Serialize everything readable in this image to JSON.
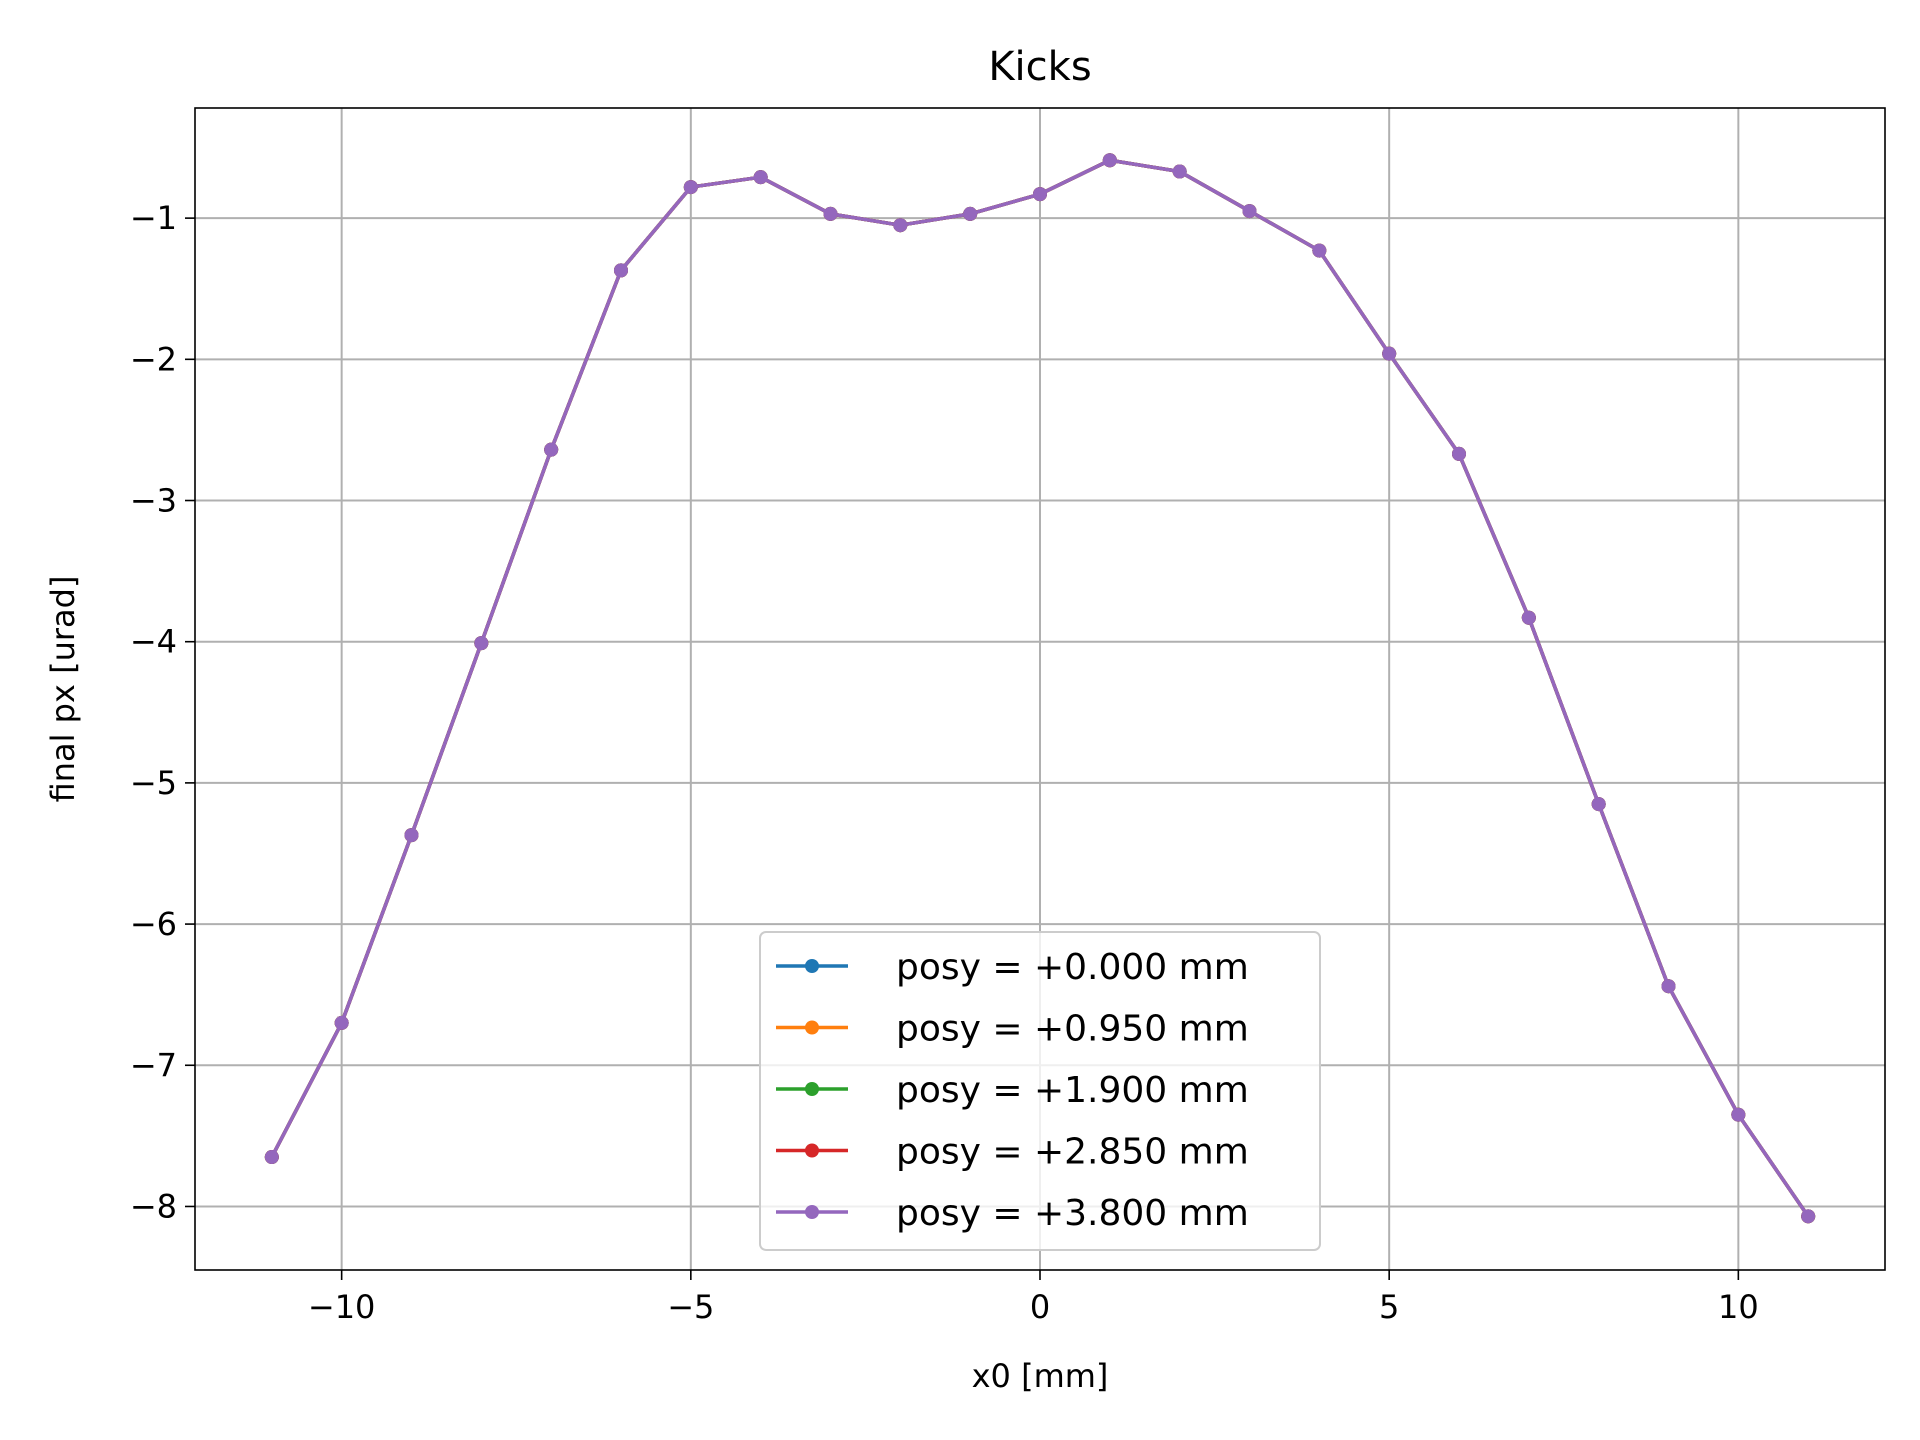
{
  "chart_data": {
    "type": "line",
    "title": "Kicks",
    "xlabel": "x0 [mm]",
    "ylabel": "final px [urad]",
    "xlim": [
      -12.1,
      12.1
    ],
    "ylim": [
      -8.45,
      -0.22
    ],
    "xticks": [
      -10,
      -5,
      0,
      5,
      10
    ],
    "xtick_labels": [
      "−10",
      "−5",
      "0",
      "5",
      "10"
    ],
    "yticks": [
      -1,
      -2,
      -3,
      -4,
      -5,
      -6,
      -7,
      -8
    ],
    "ytick_labels": [
      "−1",
      "−2",
      "−3",
      "−4",
      "−5",
      "−6",
      "−7",
      "−8"
    ],
    "grid": true,
    "legend_position": "lower center",
    "x": [
      -11,
      -10,
      -9,
      -8,
      -7,
      -6,
      -5,
      -4,
      -3,
      -2,
      -1,
      0,
      1,
      2,
      3,
      4,
      5,
      6,
      7,
      8,
      9,
      10,
      11
    ],
    "series": [
      {
        "name": "posy = +0.000 mm",
        "color": "#1f77b4",
        "values": [
          -7.65,
          -6.7,
          -5.37,
          -4.01,
          -2.64,
          -1.37,
          -0.78,
          -0.71,
          -0.97,
          -1.05,
          -0.97,
          -0.83,
          -0.59,
          -0.67,
          -0.95,
          -1.23,
          -1.96,
          -2.67,
          -3.83,
          -5.15,
          -6.44,
          -7.35,
          -8.07
        ]
      },
      {
        "name": "posy = +0.950 mm",
        "color": "#ff7f0e",
        "values": [
          -7.65,
          -6.7,
          -5.37,
          -4.01,
          -2.64,
          -1.37,
          -0.78,
          -0.71,
          -0.97,
          -1.05,
          -0.97,
          -0.83,
          -0.59,
          -0.67,
          -0.95,
          -1.23,
          -1.96,
          -2.67,
          -3.83,
          -5.15,
          -6.44,
          -7.35,
          -8.07
        ]
      },
      {
        "name": "posy = +1.900 mm",
        "color": "#2ca02c",
        "values": [
          -7.65,
          -6.7,
          -5.37,
          -4.01,
          -2.64,
          -1.37,
          -0.78,
          -0.71,
          -0.97,
          -1.05,
          -0.97,
          -0.83,
          -0.59,
          -0.67,
          -0.95,
          -1.23,
          -1.96,
          -2.67,
          -3.83,
          -5.15,
          -6.44,
          -7.35,
          -8.07
        ]
      },
      {
        "name": "posy = +2.850 mm",
        "color": "#d62728",
        "values": [
          -7.65,
          -6.7,
          -5.37,
          -4.01,
          -2.64,
          -1.37,
          -0.78,
          -0.71,
          -0.97,
          -1.05,
          -0.97,
          -0.83,
          -0.59,
          -0.67,
          -0.95,
          -1.23,
          -1.96,
          -2.67,
          -3.83,
          -5.15,
          -6.44,
          -7.35,
          -8.07
        ]
      },
      {
        "name": "posy = +3.800 mm",
        "color": "#9467bd",
        "values": [
          -7.65,
          -6.7,
          -5.37,
          -4.01,
          -2.64,
          -1.37,
          -0.78,
          -0.71,
          -0.97,
          -1.05,
          -0.97,
          -0.83,
          -0.59,
          -0.67,
          -0.95,
          -1.23,
          -1.96,
          -2.67,
          -3.83,
          -5.15,
          -6.44,
          -7.35,
          -8.07
        ]
      }
    ]
  }
}
